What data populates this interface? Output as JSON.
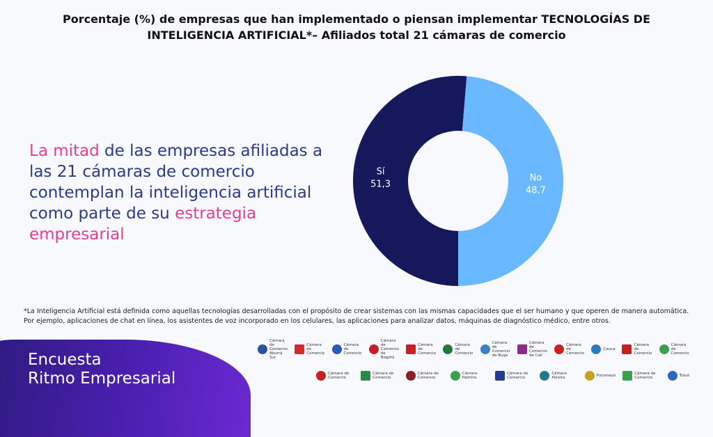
{
  "title": {
    "line1": "Porcentaje (%) de empresas que han implementado o piensan implementar TECNOLOGÍAS DE",
    "line2": "INTELIGENCIA ARTIFICIAL*–  Afiliados total 21 cámaras de comercio"
  },
  "headline": {
    "part1": "La mitad",
    "part2": " de las empresas afiliadas a las 21  cámaras de comercio contemplan la inteligencia artificial como parte de su ",
    "part3": "estrategia empresarial"
  },
  "chart_data": {
    "type": "pie",
    "variant": "donut",
    "slices": [
      {
        "label": "Sí",
        "value": 51.3,
        "value_label": "51,3",
        "color": "#15185a"
      },
      {
        "label": "No",
        "value": 48.7,
        "value_label": "48,7",
        "color": "#6ab8ff"
      }
    ]
  },
  "footnote": "*La Inteligencia Artificial está definida como aquellas tecnologías desarrolladas con el propósito de crear sistemas con las mismas capacidades que el ser humano y que operen de manera automática. Por ejemplo, aplicaciones de chat en línea, los asistentes de voz incorporado en los celulares, las aplicaciones para analizar datos, máquinas de diagnóstico médico, entre otros.",
  "brand": {
    "line1": "Encuesta",
    "line2": "Ritmo Empresarial"
  },
  "logos": {
    "row1": [
      {
        "text": "Cámara de Comercio Aburrá Sur",
        "color": "#2d4fa0"
      },
      {
        "text": "Cámara de Comercio",
        "color": "#d62a2a"
      },
      {
        "text": "Cámara de Comercio",
        "color": "#2a5ab8"
      },
      {
        "text": "Cámara de Comercio de Bogotá",
        "color": "#c8202a"
      },
      {
        "text": "Cámara de Comercio",
        "color": "#c8202a"
      },
      {
        "text": "Cámara de Comercio",
        "color": "#1f7a3a"
      },
      {
        "text": "Cámara de Comercio de Buga",
        "color": "#3a7fc8"
      },
      {
        "text": "Cámara de Comercio de Cali",
        "color": "#8a2a8a"
      },
      {
        "text": "Cámara de Comercio",
        "color": "#c82020"
      },
      {
        "text": "Cauca",
        "color": "#2a7ab8"
      },
      {
        "text": "Cámara de Comercio",
        "color": "#c82020"
      },
      {
        "text": "Cámara de Comercio",
        "color": "#3aa050"
      }
    ],
    "row2": [
      {
        "text": "Cámara de Comercio",
        "color": "#c82020"
      },
      {
        "text": "Cámara de Comercio",
        "color": "#2a8a4a"
      },
      {
        "text": "Cámara de Comercio",
        "color": "#8a2020"
      },
      {
        "text": "Cámara Palmira",
        "color": "#3aa050"
      },
      {
        "text": "Cámara de Comercio",
        "color": "#2a3a8a"
      },
      {
        "text": "Cámara Pereira",
        "color": "#1f7a8a"
      },
      {
        "text": "Putumayo",
        "color": "#c8a020"
      },
      {
        "text": "Cámara de Comercio",
        "color": "#3aa050"
      },
      {
        "text": "Tuluá",
        "color": "#2a6ab8"
      }
    ]
  }
}
